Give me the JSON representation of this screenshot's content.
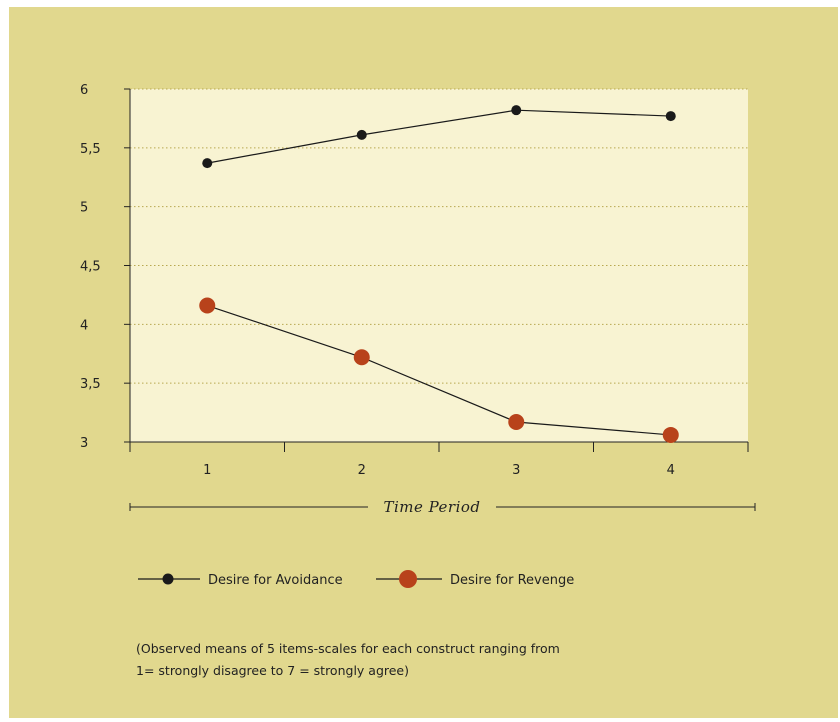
{
  "colors": {
    "panel_bg": "#e1d88e",
    "plot_bg": "#f8f3d2",
    "grid": "#b8a850",
    "avoidance": "#1a1a1a",
    "revenge": "#b8421b"
  },
  "chart_data": {
    "type": "line",
    "categories": [
      "1",
      "2",
      "3",
      "4"
    ],
    "x": [
      1,
      2,
      3,
      4
    ],
    "xlabel": "Time Period",
    "ylabel": "",
    "title": "",
    "ylim": [
      3,
      6
    ],
    "yticks": [
      3,
      3.5,
      4,
      4.5,
      5,
      5.5,
      6
    ],
    "ytick_labels": [
      "3",
      "3,5",
      "4",
      "4,5",
      "5",
      "5,5",
      "6"
    ],
    "grid": "horizontal dotted",
    "legend_position": "bottom",
    "series": [
      {
        "name": "Desire for Avoidance",
        "values": [
          5.37,
          5.61,
          5.82,
          5.77
        ],
        "color": "#1a1a1a",
        "marker": "small-circle"
      },
      {
        "name": "Desire for Revenge",
        "values": [
          4.16,
          3.72,
          3.17,
          3.06
        ],
        "color": "#b8421b",
        "marker": "large-circle"
      }
    ]
  },
  "note": {
    "line1": "(Observed means of 5 items-scales for each construct ranging from",
    "line2": "1= strongly disagree to 7 = strongly agree)"
  }
}
